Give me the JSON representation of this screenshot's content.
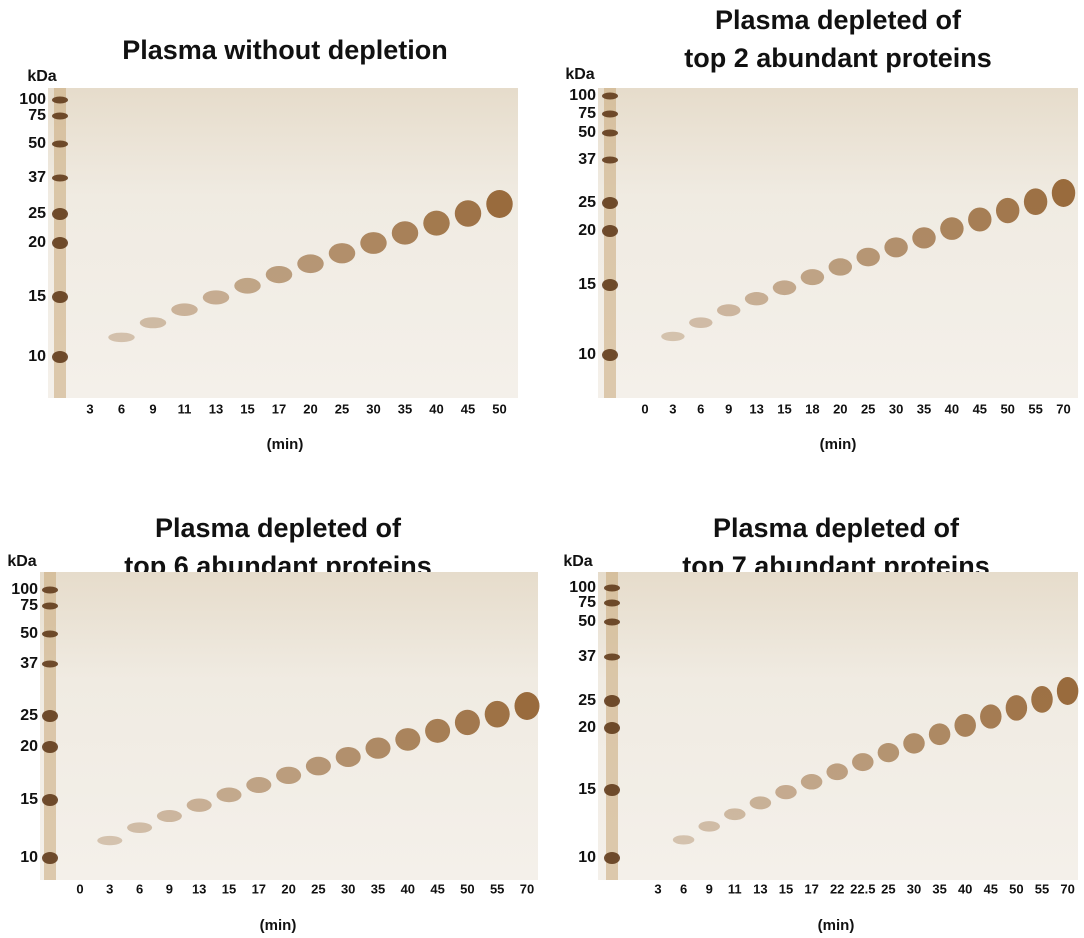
{
  "panels": [
    {
      "title": [
        "Plasma without depletion"
      ],
      "unit": "kDa",
      "markers": [
        "100",
        "75",
        "50",
        "37",
        "25",
        "20",
        "15",
        "10"
      ],
      "lanes": [
        "3",
        "6",
        "9",
        "11",
        "13",
        "15",
        "17",
        "20",
        "25",
        "30",
        "35",
        "40",
        "45",
        "50"
      ],
      "xlabel": "(min)"
    },
    {
      "title": [
        "Plasma depleted of",
        "top 2 abundant proteins"
      ],
      "unit": "kDa",
      "markers": [
        "100",
        "75",
        "50",
        "37",
        "25",
        "20",
        "15",
        "10"
      ],
      "lanes": [
        "0",
        "3",
        "6",
        "9",
        "13",
        "15",
        "18",
        "20",
        "25",
        "30",
        "35",
        "40",
        "45",
        "50",
        "55",
        "70"
      ],
      "xlabel": "(min)"
    },
    {
      "title": [
        "Plasma depleted of",
        "top 6 abundant proteins"
      ],
      "unit": "kDa",
      "markers": [
        "100",
        "75",
        "50",
        "37",
        "25",
        "20",
        "15",
        "10"
      ],
      "lanes": [
        "0",
        "3",
        "6",
        "9",
        "13",
        "15",
        "17",
        "20",
        "25",
        "30",
        "35",
        "40",
        "45",
        "50",
        "55",
        "70"
      ],
      "xlabel": "(min)"
    },
    {
      "title": [
        "Plasma depleted of",
        "top 7 abundant proteins"
      ],
      "unit": "kDa",
      "markers": [
        "100",
        "75",
        "50",
        "37",
        "25",
        "20",
        "15",
        "10"
      ],
      "lanes": [
        "3",
        "6",
        "9",
        "11",
        "13",
        "15",
        "17",
        "22",
        "22.5",
        "25",
        "30",
        "35",
        "40",
        "45",
        "50",
        "55",
        "70"
      ],
      "xlabel": "(min)"
    }
  ]
}
